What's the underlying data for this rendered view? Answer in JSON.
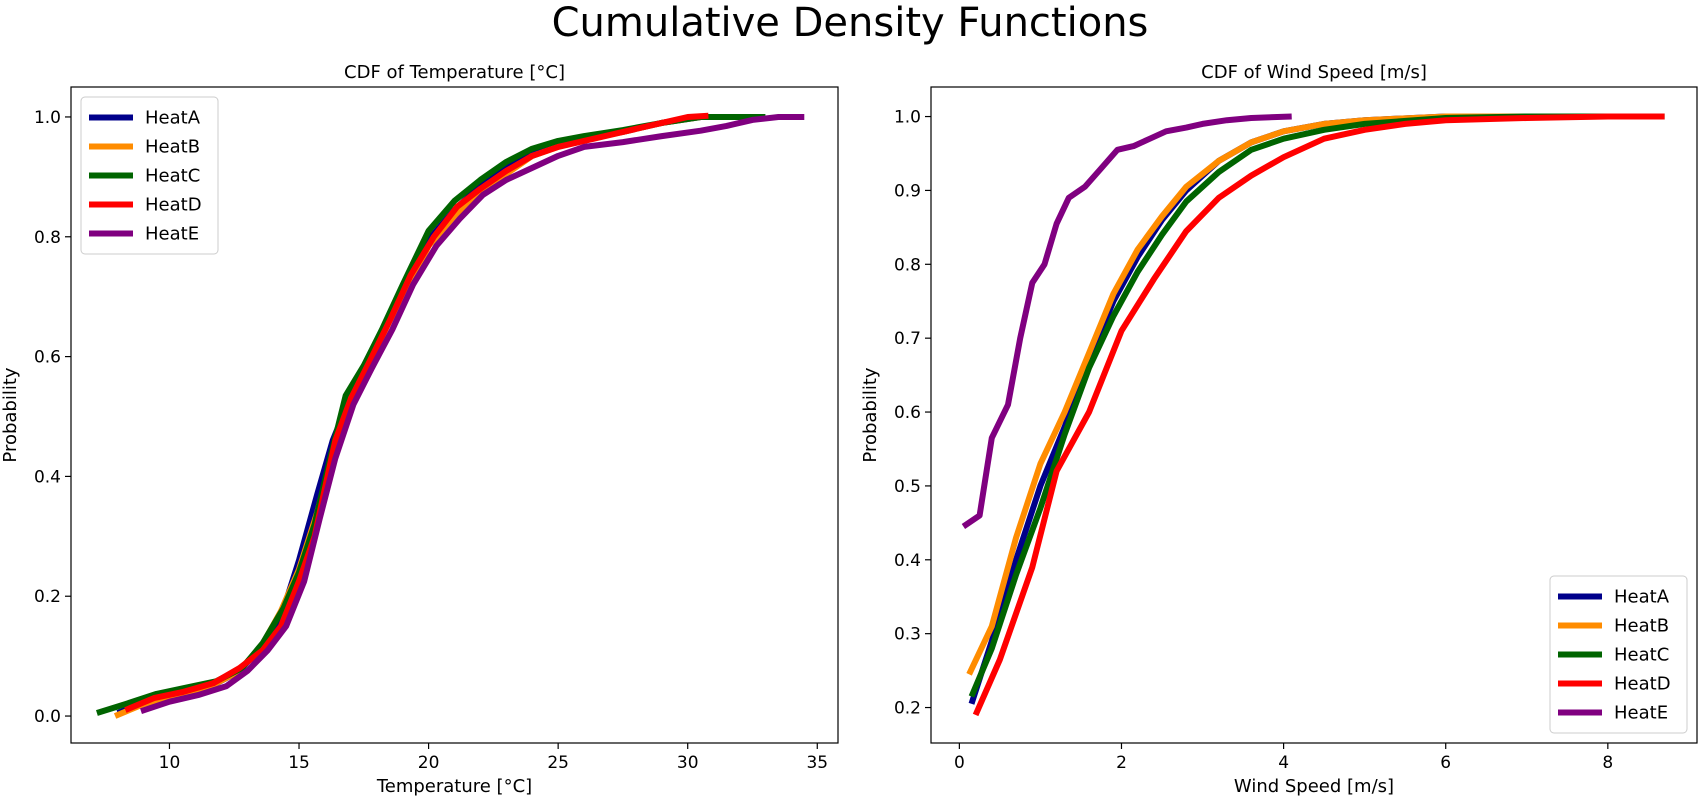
{
  "figure": {
    "suptitle": "Cumulative Density Functions"
  },
  "chart_data": [
    {
      "type": "line",
      "title": "CDF of Temperature [°C]",
      "xlabel": "Temperature [°C]",
      "ylabel": "Probability",
      "xlim": [
        6.2,
        35.8
      ],
      "ylim": [
        -0.045,
        1.05
      ],
      "xticks": [
        10,
        15,
        20,
        25,
        30,
        35
      ],
      "yticks": [
        0.0,
        0.2,
        0.4,
        0.6,
        0.8,
        1.0
      ],
      "ytick_labels": [
        "0.0",
        "0.2",
        "0.4",
        "0.6",
        "0.8",
        "1.0"
      ],
      "legend_position": "upper-left",
      "series": [
        {
          "name": "HeatA",
          "color": "#00008b",
          "points": [
            [
              8.0,
              0.005
            ],
            [
              9.2,
              0.025
            ],
            [
              10.5,
              0.04
            ],
            [
              11.7,
              0.052
            ],
            [
              12.7,
              0.075
            ],
            [
              13.5,
              0.115
            ],
            [
              14.3,
              0.165
            ],
            [
              15.0,
              0.26
            ],
            [
              15.7,
              0.37
            ],
            [
              16.3,
              0.46
            ],
            [
              17.0,
              0.535
            ],
            [
              17.8,
              0.6
            ],
            [
              18.5,
              0.66
            ],
            [
              19.3,
              0.73
            ],
            [
              20.0,
              0.795
            ],
            [
              21.0,
              0.845
            ],
            [
              22.0,
              0.885
            ],
            [
              23.0,
              0.915
            ],
            [
              24.0,
              0.94
            ],
            [
              25.0,
              0.955
            ],
            [
              26.0,
              0.965
            ],
            [
              27.5,
              0.975
            ],
            [
              29.0,
              0.99
            ],
            [
              30.5,
              1.0
            ],
            [
              31.5,
              1.0
            ]
          ]
        },
        {
          "name": "HeatB",
          "color": "#ff8c00",
          "points": [
            [
              7.9,
              0.0
            ],
            [
              9.0,
              0.02
            ],
            [
              10.3,
              0.036
            ],
            [
              11.6,
              0.05
            ],
            [
              12.6,
              0.073
            ],
            [
              13.5,
              0.113
            ],
            [
              14.3,
              0.175
            ],
            [
              15.0,
              0.245
            ],
            [
              15.7,
              0.34
            ],
            [
              16.3,
              0.44
            ],
            [
              17.0,
              0.535
            ],
            [
              17.8,
              0.595
            ],
            [
              18.5,
              0.66
            ],
            [
              19.3,
              0.72
            ],
            [
              20.0,
              0.785
            ],
            [
              21.0,
              0.835
            ],
            [
              22.0,
              0.875
            ],
            [
              23.0,
              0.905
            ],
            [
              24.0,
              0.935
            ],
            [
              25.0,
              0.95
            ],
            [
              26.0,
              0.962
            ],
            [
              27.5,
              0.975
            ],
            [
              29.0,
              0.99
            ],
            [
              30.5,
              1.0
            ],
            [
              31.5,
              1.0
            ]
          ]
        },
        {
          "name": "HeatC",
          "color": "#006400",
          "points": [
            [
              7.2,
              0.005
            ],
            [
              8.3,
              0.02
            ],
            [
              9.5,
              0.037
            ],
            [
              10.7,
              0.048
            ],
            [
              11.8,
              0.058
            ],
            [
              12.8,
              0.08
            ],
            [
              13.6,
              0.122
            ],
            [
              14.4,
              0.18
            ],
            [
              15.0,
              0.24
            ],
            [
              15.6,
              0.32
            ],
            [
              16.2,
              0.43
            ],
            [
              16.8,
              0.535
            ],
            [
              17.5,
              0.585
            ],
            [
              18.2,
              0.645
            ],
            [
              19.0,
              0.72
            ],
            [
              20.0,
              0.81
            ],
            [
              21.0,
              0.86
            ],
            [
              22.0,
              0.895
            ],
            [
              23.0,
              0.925
            ],
            [
              24.0,
              0.947
            ],
            [
              25.0,
              0.96
            ],
            [
              26.0,
              0.968
            ],
            [
              27.5,
              0.978
            ],
            [
              29.0,
              0.99
            ],
            [
              30.5,
              1.0
            ],
            [
              32.0,
              1.0
            ],
            [
              33.0,
              1.0
            ]
          ]
        },
        {
          "name": "HeatD",
          "color": "#ff0000",
          "points": [
            [
              8.3,
              0.01
            ],
            [
              9.4,
              0.03
            ],
            [
              10.5,
              0.04
            ],
            [
              11.7,
              0.055
            ],
            [
              12.7,
              0.08
            ],
            [
              13.6,
              0.11
            ],
            [
              14.3,
              0.15
            ],
            [
              15.0,
              0.225
            ],
            [
              15.6,
              0.3
            ],
            [
              16.0,
              0.38
            ],
            [
              16.4,
              0.46
            ],
            [
              17.0,
              0.53
            ],
            [
              17.7,
              0.59
            ],
            [
              18.5,
              0.66
            ],
            [
              19.3,
              0.735
            ],
            [
              20.2,
              0.8
            ],
            [
              21.1,
              0.85
            ],
            [
              22.0,
              0.88
            ],
            [
              23.0,
              0.91
            ],
            [
              24.0,
              0.935
            ],
            [
              25.0,
              0.95
            ],
            [
              26.0,
              0.96
            ],
            [
              27.5,
              0.975
            ],
            [
              29.0,
              0.99
            ],
            [
              30.0,
              1.0
            ],
            [
              30.8,
              1.002
            ]
          ]
        },
        {
          "name": "HeatE",
          "color": "#800080",
          "points": [
            [
              8.9,
              0.008
            ],
            [
              10.0,
              0.024
            ],
            [
              11.1,
              0.035
            ],
            [
              12.2,
              0.05
            ],
            [
              13.0,
              0.075
            ],
            [
              13.8,
              0.11
            ],
            [
              14.5,
              0.15
            ],
            [
              15.2,
              0.225
            ],
            [
              15.8,
              0.33
            ],
            [
              16.4,
              0.43
            ],
            [
              17.1,
              0.52
            ],
            [
              17.8,
              0.58
            ],
            [
              18.6,
              0.645
            ],
            [
              19.4,
              0.72
            ],
            [
              20.3,
              0.785
            ],
            [
              21.2,
              0.83
            ],
            [
              22.1,
              0.87
            ],
            [
              23.0,
              0.895
            ],
            [
              24.0,
              0.915
            ],
            [
              25.0,
              0.935
            ],
            [
              26.0,
              0.95
            ],
            [
              27.5,
              0.958
            ],
            [
              29.0,
              0.968
            ],
            [
              30.5,
              0.977
            ],
            [
              31.5,
              0.985
            ],
            [
              32.5,
              0.995
            ],
            [
              33.5,
              1.0
            ],
            [
              34.5,
              1.0
            ]
          ]
        }
      ]
    },
    {
      "type": "line",
      "title": "CDF of Wind Speed [m/s]",
      "xlabel": "Wind Speed [m/s]",
      "ylabel": "Probability",
      "xlim": [
        -0.35,
        9.1
      ],
      "ylim": [
        0.152,
        1.04
      ],
      "xticks": [
        0,
        2,
        4,
        6,
        8
      ],
      "yticks": [
        0.2,
        0.3,
        0.4,
        0.5,
        0.6,
        0.7,
        0.8,
        0.9,
        1.0
      ],
      "ytick_labels": [
        "0.2",
        "0.3",
        "0.4",
        "0.5",
        "0.6",
        "0.7",
        "0.8",
        "0.9",
        "1.0"
      ],
      "legend_position": "lower-right",
      "series": [
        {
          "name": "HeatA",
          "color": "#00008b",
          "points": [
            [
              0.15,
              0.205
            ],
            [
              0.4,
              0.29
            ],
            [
              0.7,
              0.4
            ],
            [
              1.0,
              0.5
            ],
            [
              1.3,
              0.58
            ],
            [
              1.6,
              0.67
            ],
            [
              1.9,
              0.75
            ],
            [
              2.2,
              0.81
            ],
            [
              2.5,
              0.86
            ],
            [
              2.8,
              0.9
            ],
            [
              3.2,
              0.94
            ],
            [
              3.6,
              0.965
            ],
            [
              4.0,
              0.98
            ],
            [
              4.5,
              0.99
            ],
            [
              5.0,
              0.995
            ],
            [
              6.0,
              1.0
            ],
            [
              7.0,
              1.0
            ],
            [
              7.5,
              1.0
            ]
          ]
        },
        {
          "name": "HeatB",
          "color": "#ff8c00",
          "points": [
            [
              0.12,
              0.245
            ],
            [
              0.4,
              0.31
            ],
            [
              0.7,
              0.43
            ],
            [
              1.0,
              0.53
            ],
            [
              1.3,
              0.6
            ],
            [
              1.6,
              0.68
            ],
            [
              1.9,
              0.76
            ],
            [
              2.2,
              0.82
            ],
            [
              2.5,
              0.865
            ],
            [
              2.8,
              0.905
            ],
            [
              3.2,
              0.94
            ],
            [
              3.6,
              0.965
            ],
            [
              4.0,
              0.98
            ],
            [
              4.5,
              0.99
            ],
            [
              5.0,
              0.995
            ],
            [
              6.0,
              1.0
            ],
            [
              7.0,
              1.0
            ],
            [
              7.8,
              1.0
            ]
          ]
        },
        {
          "name": "HeatC",
          "color": "#006400",
          "points": [
            [
              0.15,
              0.215
            ],
            [
              0.4,
              0.28
            ],
            [
              0.7,
              0.38
            ],
            [
              1.0,
              0.47
            ],
            [
              1.3,
              0.57
            ],
            [
              1.6,
              0.66
            ],
            [
              1.9,
              0.73
            ],
            [
              2.2,
              0.79
            ],
            [
              2.5,
              0.84
            ],
            [
              2.8,
              0.885
            ],
            [
              3.2,
              0.925
            ],
            [
              3.6,
              0.955
            ],
            [
              4.0,
              0.97
            ],
            [
              4.5,
              0.982
            ],
            [
              5.0,
              0.99
            ],
            [
              6.0,
              0.998
            ],
            [
              7.0,
              1.0
            ],
            [
              8.0,
              1.0
            ],
            [
              8.7,
              1.0
            ]
          ]
        },
        {
          "name": "HeatD",
          "color": "#ff0000",
          "points": [
            [
              0.2,
              0.19
            ],
            [
              0.5,
              0.265
            ],
            [
              0.9,
              0.39
            ],
            [
              1.2,
              0.52
            ],
            [
              1.6,
              0.6
            ],
            [
              2.0,
              0.71
            ],
            [
              2.4,
              0.78
            ],
            [
              2.8,
              0.845
            ],
            [
              3.2,
              0.89
            ],
            [
              3.6,
              0.92
            ],
            [
              4.0,
              0.945
            ],
            [
              4.5,
              0.97
            ],
            [
              5.0,
              0.982
            ],
            [
              5.5,
              0.99
            ],
            [
              6.0,
              0.995
            ],
            [
              7.0,
              0.998
            ],
            [
              8.0,
              1.0
            ],
            [
              8.7,
              1.0
            ]
          ]
        },
        {
          "name": "HeatE",
          "color": "#800080",
          "points": [
            [
              0.05,
              0.445
            ],
            [
              0.25,
              0.46
            ],
            [
              0.4,
              0.565
            ],
            [
              0.6,
              0.61
            ],
            [
              0.75,
              0.7
            ],
            [
              0.9,
              0.775
            ],
            [
              1.05,
              0.8
            ],
            [
              1.2,
              0.855
            ],
            [
              1.35,
              0.89
            ],
            [
              1.55,
              0.905
            ],
            [
              1.75,
              0.93
            ],
            [
              1.95,
              0.955
            ],
            [
              2.15,
              0.96
            ],
            [
              2.35,
              0.97
            ],
            [
              2.55,
              0.98
            ],
            [
              2.8,
              0.985
            ],
            [
              3.0,
              0.99
            ],
            [
              3.3,
              0.995
            ],
            [
              3.6,
              0.998
            ],
            [
              4.1,
              1.0
            ]
          ]
        }
      ]
    }
  ]
}
